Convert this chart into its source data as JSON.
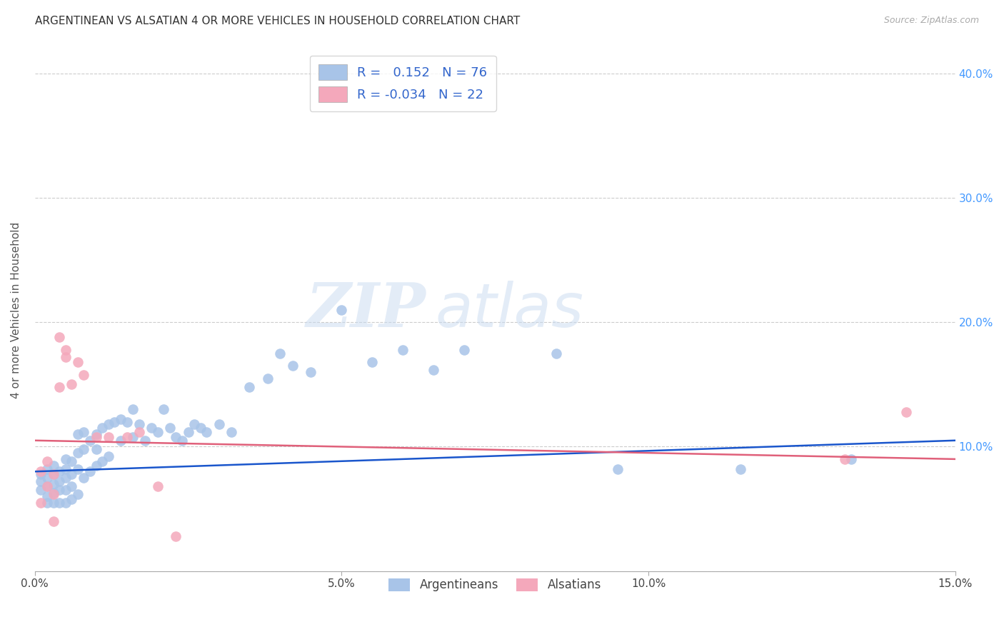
{
  "title": "ARGENTINEAN VS ALSATIAN 4 OR MORE VEHICLES IN HOUSEHOLD CORRELATION CHART",
  "source": "Source: ZipAtlas.com",
  "ylabel": "4 or more Vehicles in Household",
  "xlim": [
    0.0,
    0.15
  ],
  "ylim": [
    0.0,
    0.42
  ],
  "xticks": [
    0.0,
    0.05,
    0.1,
    0.15
  ],
  "xticklabels": [
    "0.0%",
    "5.0%",
    "10.0%",
    "15.0%"
  ],
  "yticks_right": [
    0.0,
    0.1,
    0.2,
    0.3,
    0.4
  ],
  "yticklabels_right": [
    "",
    "10.0%",
    "20.0%",
    "30.0%",
    "40.0%"
  ],
  "legend_blue_r": "0.152",
  "legend_blue_n": "76",
  "legend_pink_r": "-0.034",
  "legend_pink_n": "22",
  "blue_color": "#a8c4e8",
  "pink_color": "#f4a8bb",
  "line_blue": "#1a56cc",
  "line_pink": "#e0607a",
  "background_color": "#ffffff",
  "grid_color": "#cccccc",
  "watermark_left": "ZIP",
  "watermark_right": "atlas",
  "legend_label_blue": "Argentineans",
  "legend_label_pink": "Alsatians",
  "blue_scatter_x": [
    0.001,
    0.001,
    0.001,
    0.002,
    0.002,
    0.002,
    0.002,
    0.002,
    0.003,
    0.003,
    0.003,
    0.003,
    0.003,
    0.004,
    0.004,
    0.004,
    0.004,
    0.005,
    0.005,
    0.005,
    0.005,
    0.005,
    0.006,
    0.006,
    0.006,
    0.006,
    0.007,
    0.007,
    0.007,
    0.007,
    0.008,
    0.008,
    0.008,
    0.009,
    0.009,
    0.01,
    0.01,
    0.01,
    0.011,
    0.011,
    0.012,
    0.012,
    0.013,
    0.014,
    0.014,
    0.015,
    0.016,
    0.016,
    0.017,
    0.018,
    0.019,
    0.02,
    0.021,
    0.022,
    0.023,
    0.024,
    0.025,
    0.026,
    0.027,
    0.028,
    0.03,
    0.032,
    0.035,
    0.038,
    0.04,
    0.042,
    0.045,
    0.05,
    0.055,
    0.06,
    0.065,
    0.07,
    0.085,
    0.095,
    0.115,
    0.133
  ],
  "blue_scatter_y": [
    0.078,
    0.072,
    0.065,
    0.082,
    0.075,
    0.068,
    0.06,
    0.055,
    0.085,
    0.078,
    0.07,
    0.063,
    0.055,
    0.08,
    0.072,
    0.065,
    0.055,
    0.09,
    0.082,
    0.075,
    0.065,
    0.055,
    0.088,
    0.078,
    0.068,
    0.058,
    0.11,
    0.095,
    0.082,
    0.062,
    0.112,
    0.098,
    0.075,
    0.105,
    0.08,
    0.11,
    0.098,
    0.085,
    0.115,
    0.088,
    0.118,
    0.092,
    0.12,
    0.122,
    0.105,
    0.12,
    0.13,
    0.108,
    0.118,
    0.105,
    0.115,
    0.112,
    0.13,
    0.115,
    0.108,
    0.105,
    0.112,
    0.118,
    0.115,
    0.112,
    0.118,
    0.112,
    0.148,
    0.155,
    0.175,
    0.165,
    0.16,
    0.21,
    0.168,
    0.178,
    0.162,
    0.178,
    0.175,
    0.082,
    0.082,
    0.09
  ],
  "pink_scatter_x": [
    0.001,
    0.001,
    0.002,
    0.002,
    0.003,
    0.003,
    0.003,
    0.004,
    0.004,
    0.005,
    0.005,
    0.006,
    0.007,
    0.008,
    0.01,
    0.012,
    0.015,
    0.017,
    0.02,
    0.023,
    0.132,
    0.142
  ],
  "pink_scatter_y": [
    0.08,
    0.055,
    0.088,
    0.068,
    0.078,
    0.062,
    0.04,
    0.188,
    0.148,
    0.178,
    0.172,
    0.15,
    0.168,
    0.158,
    0.108,
    0.108,
    0.108,
    0.112,
    0.068,
    0.028,
    0.09,
    0.128
  ],
  "blue_line_start_y": 0.08,
  "blue_line_end_y": 0.105,
  "pink_line_start_y": 0.105,
  "pink_line_end_y": 0.09
}
